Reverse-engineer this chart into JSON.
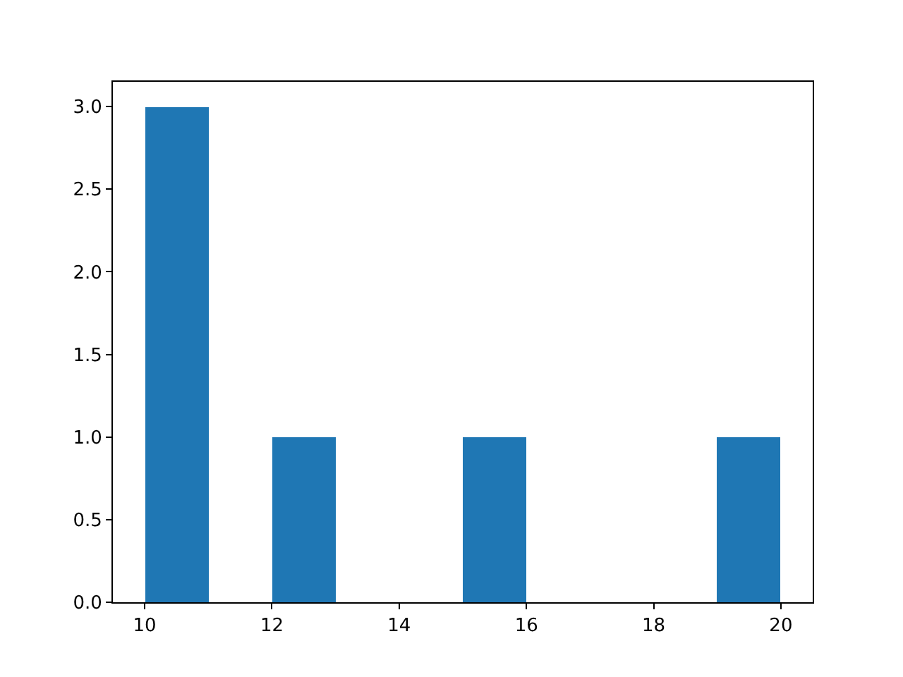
{
  "chart_data": {
    "type": "histogram",
    "bins": [
      10,
      11,
      12,
      13,
      14,
      15,
      16,
      17,
      18,
      19,
      20
    ],
    "values": [
      3,
      0,
      1,
      0,
      0,
      1,
      0,
      0,
      0,
      1
    ],
    "color": "#1f77b4",
    "xlim": [
      9.5,
      20.5
    ],
    "xticks": [
      10,
      12,
      14,
      16,
      18,
      20
    ],
    "ylim": [
      0,
      3.15
    ],
    "yticks": [
      {
        "value": 0,
        "label": "0.0"
      },
      {
        "value": 0.5,
        "label": "0.5"
      },
      {
        "value": 1,
        "label": "1.0"
      },
      {
        "value": 1.5,
        "label": "1.5"
      },
      {
        "value": 2,
        "label": "2.0"
      },
      {
        "value": 2.5,
        "label": "2.5"
      },
      {
        "value": 3,
        "label": "3.0"
      }
    ]
  }
}
